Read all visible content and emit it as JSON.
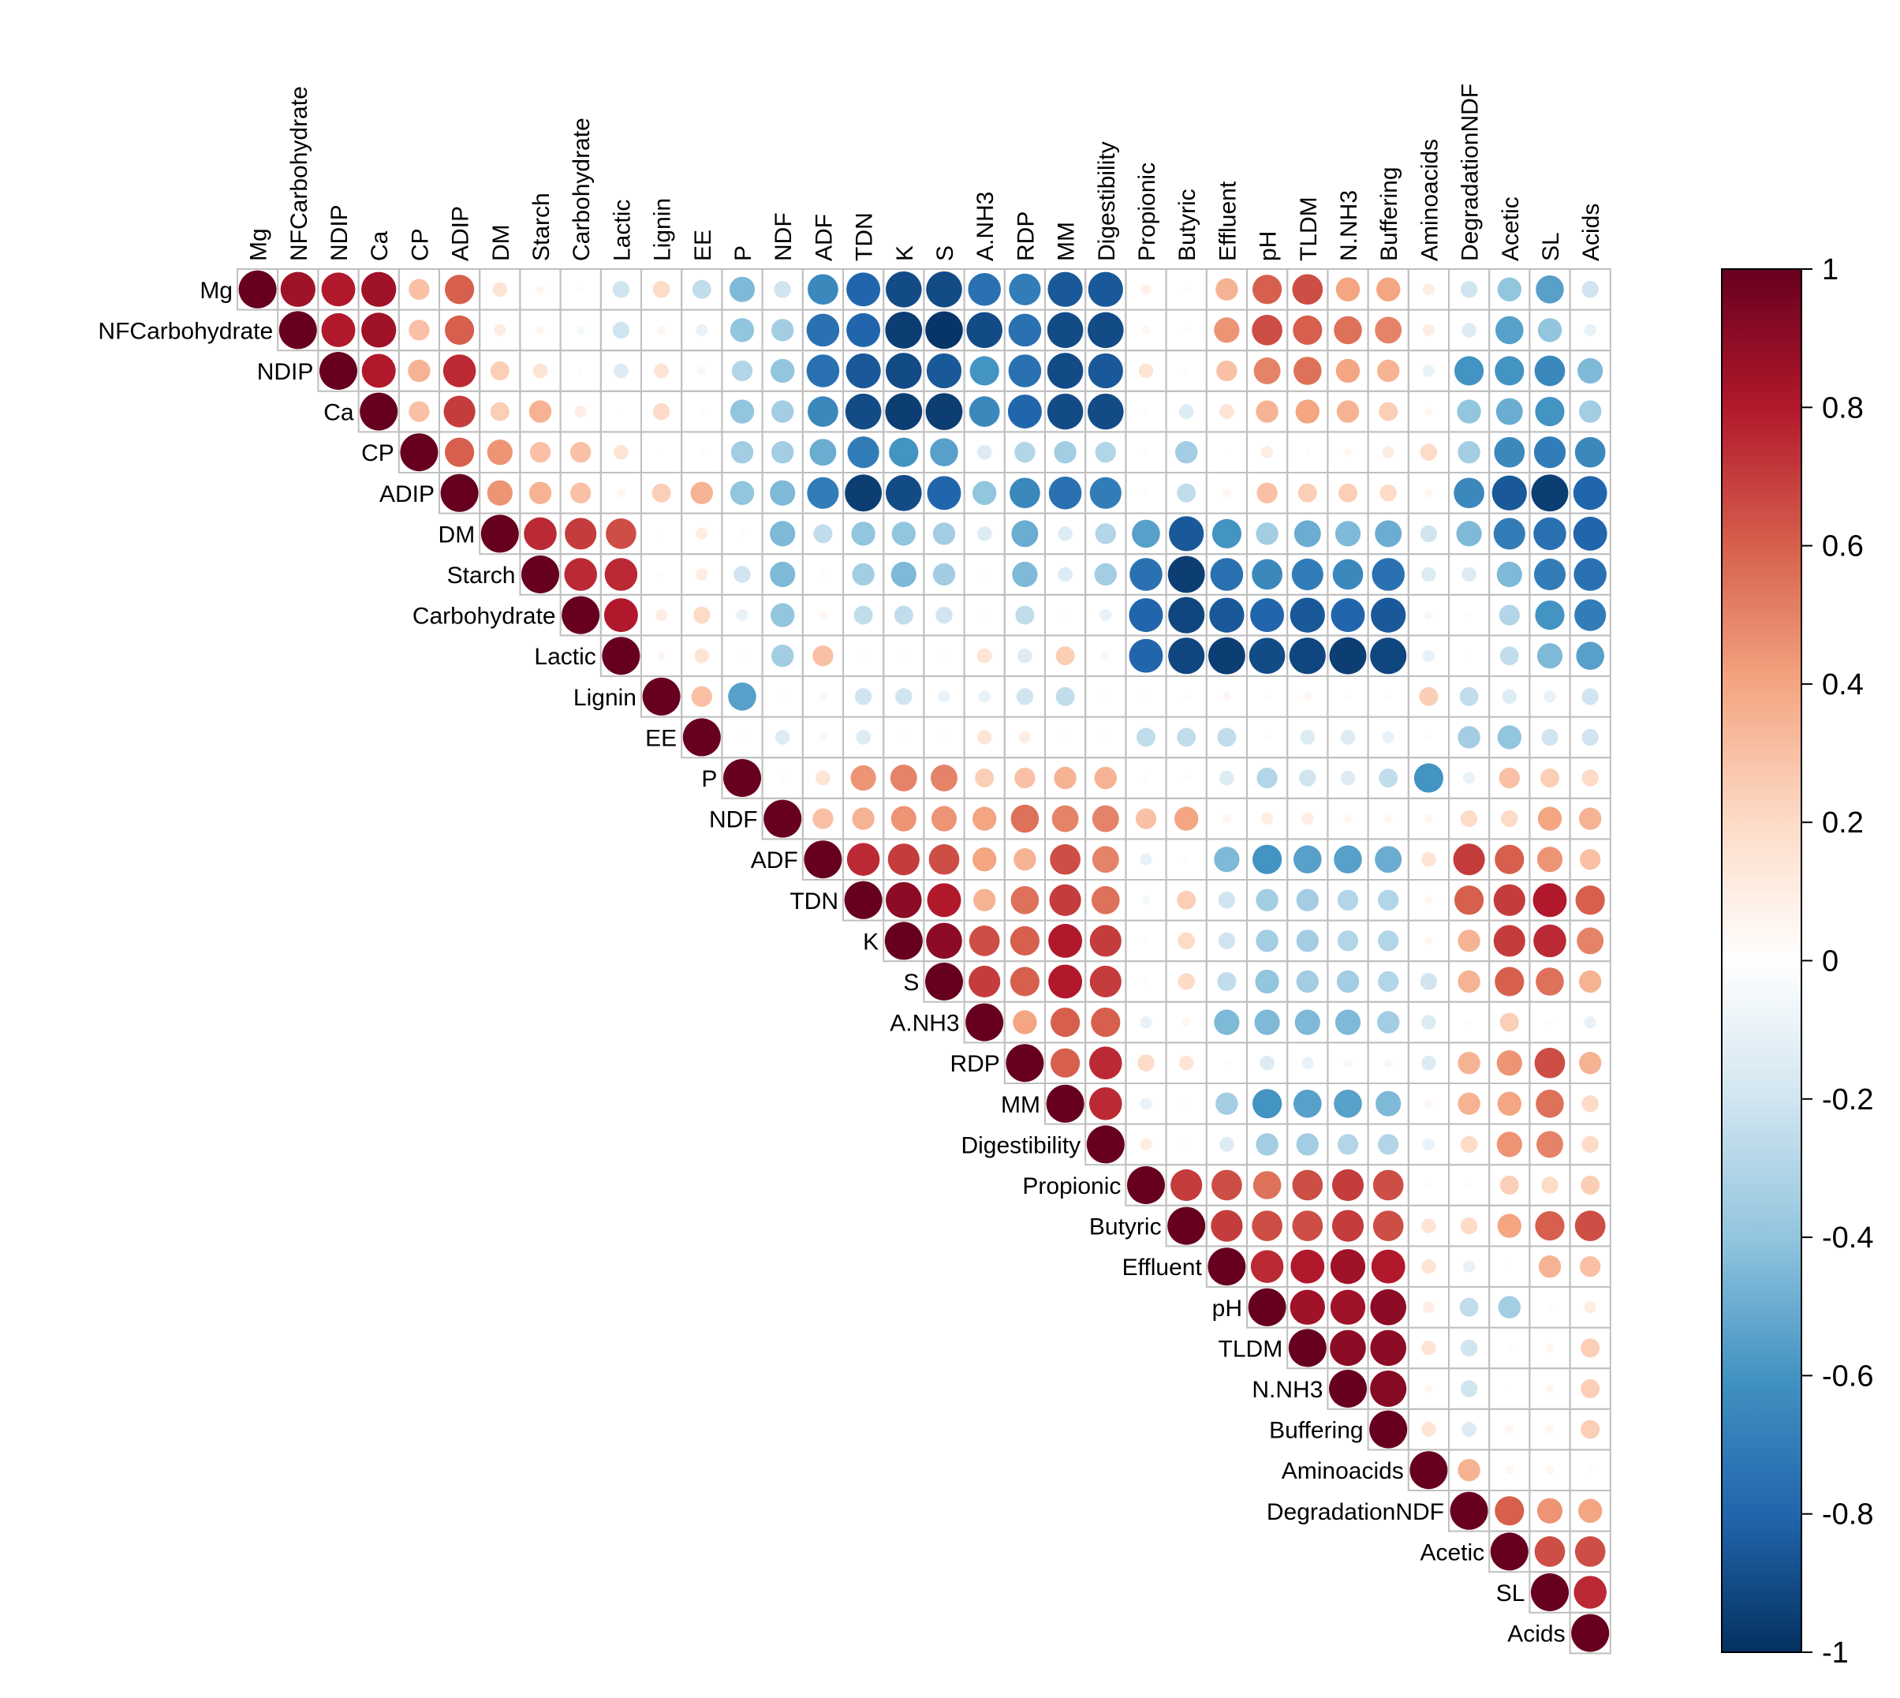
{
  "chart_data": {
    "type": "heatmap",
    "subtype": "correlation-matrix-upper-circles",
    "variables": [
      "Mg",
      "NFCarbohydrate",
      "NDIP",
      "Ca",
      "CP",
      "ADIP",
      "DM",
      "Starch",
      "Carbohydrate",
      "Lactic",
      "Lignin",
      "EE",
      "P",
      "NDF",
      "ADF",
      "TDN",
      "K",
      "S",
      "A.NH3",
      "RDP",
      "MM",
      "Digestibility",
      "Propionic",
      "Butyric",
      "Effluent",
      "pH",
      "TLDM",
      "N.NH3",
      "Buffering",
      "Aminoacids",
      "DegradationNDF",
      "Acetic",
      "SL",
      "Acids"
    ],
    "matrix": [
      [
        1,
        0.85,
        0.8,
        0.85,
        0.3,
        0.6,
        0.15,
        0.05,
        0.02,
        -0.2,
        0.2,
        -0.25,
        -0.45,
        -0.2,
        -0.65,
        -0.8,
        -0.9,
        -0.9,
        -0.75,
        -0.7,
        -0.85,
        -0.85,
        0.08,
        0.02,
        0.35,
        0.6,
        0.65,
        0.4,
        0.4,
        0.1,
        -0.2,
        -0.4,
        -0.55,
        -0.2
      ],
      [
        0,
        1,
        0.8,
        0.85,
        0.3,
        0.6,
        0.1,
        0.05,
        -0.05,
        -0.2,
        0.05,
        -0.1,
        -0.4,
        -0.35,
        -0.75,
        -0.8,
        -0.95,
        -0.98,
        -0.9,
        -0.75,
        -0.9,
        -0.9,
        0.05,
        0.02,
        0.45,
        0.65,
        0.6,
        0.55,
        0.5,
        0.1,
        -0.15,
        -0.55,
        -0.4,
        -0.1
      ],
      [
        0,
        0,
        1,
        0.8,
        0.35,
        0.75,
        0.25,
        0.15,
        0.02,
        -0.15,
        0.15,
        -0.05,
        -0.3,
        -0.4,
        -0.75,
        -0.85,
        -0.9,
        -0.85,
        -0.6,
        -0.75,
        -0.9,
        -0.85,
        0.15,
        0.02,
        0.3,
        0.5,
        0.55,
        0.4,
        0.35,
        -0.1,
        -0.6,
        -0.6,
        -0.65,
        -0.45
      ],
      [
        0,
        0,
        0,
        1,
        0.3,
        0.7,
        0.25,
        0.35,
        0.1,
        0.02,
        0.2,
        0.02,
        -0.4,
        -0.35,
        -0.65,
        -0.9,
        -0.95,
        -0.95,
        -0.65,
        -0.8,
        -0.9,
        -0.9,
        0.02,
        -0.15,
        0.15,
        0.35,
        0.4,
        0.35,
        0.25,
        0.05,
        -0.4,
        -0.5,
        -0.6,
        -0.35
      ],
      [
        0,
        0,
        0,
        0,
        1,
        0.6,
        0.45,
        0.3,
        0.3,
        0.15,
        0.02,
        0.02,
        -0.35,
        -0.35,
        -0.5,
        -0.7,
        -0.6,
        -0.55,
        -0.15,
        -0.3,
        -0.35,
        -0.3,
        0.02,
        -0.35,
        0.02,
        0.1,
        0.02,
        0.05,
        0.1,
        0.2,
        -0.35,
        -0.65,
        -0.7,
        -0.65
      ],
      [
        0,
        0,
        0,
        0,
        0,
        1,
        0.45,
        0.35,
        0.3,
        0.05,
        0.25,
        0.35,
        -0.4,
        -0.45,
        -0.7,
        -0.95,
        -0.9,
        -0.8,
        -0.4,
        -0.65,
        -0.75,
        -0.7,
        0.02,
        -0.25,
        0.05,
        0.3,
        0.25,
        0.25,
        0.2,
        0.05,
        -0.65,
        -0.85,
        -0.95,
        -0.8
      ],
      [
        0,
        0,
        0,
        0,
        0,
        0,
        1,
        0.75,
        0.7,
        0.65,
        0.02,
        0.1,
        0.02,
        -0.45,
        -0.25,
        -0.4,
        -0.4,
        -0.35,
        -0.15,
        -0.5,
        -0.15,
        -0.3,
        -0.55,
        -0.85,
        -0.6,
        -0.35,
        -0.5,
        -0.45,
        -0.5,
        -0.2,
        -0.45,
        -0.7,
        -0.75,
        -0.8
      ],
      [
        0,
        0,
        0,
        0,
        0,
        0,
        0,
        1,
        0.75,
        0.75,
        0.02,
        0.1,
        -0.2,
        -0.45,
        0.02,
        -0.35,
        -0.45,
        -0.35,
        0.02,
        -0.45,
        -0.15,
        -0.35,
        -0.75,
        -0.95,
        -0.75,
        -0.65,
        -0.7,
        -0.65,
        -0.75,
        -0.15,
        -0.15,
        -0.45,
        -0.7,
        -0.75
      ],
      [
        0,
        0,
        0,
        0,
        0,
        0,
        0,
        0,
        1,
        0.8,
        0.1,
        0.2,
        -0.1,
        -0.4,
        0.05,
        -0.25,
        -0.25,
        -0.2,
        0.02,
        -0.25,
        0.02,
        -0.1,
        -0.8,
        -0.92,
        -0.85,
        -0.8,
        -0.85,
        -0.8,
        -0.85,
        -0.05,
        0.02,
        -0.3,
        -0.6,
        -0.7
      ],
      [
        0,
        0,
        0,
        0,
        0,
        0,
        0,
        0,
        0,
        1,
        0.05,
        0.15,
        0.02,
        -0.35,
        0.3,
        0.02,
        0.02,
        0.02,
        0.15,
        -0.15,
        0.25,
        0.05,
        -0.8,
        -0.92,
        -0.95,
        -0.9,
        -0.92,
        -0.95,
        -0.92,
        -0.1,
        0.02,
        -0.25,
        -0.45,
        -0.55
      ],
      [
        0,
        0,
        0,
        0,
        0,
        0,
        0,
        0,
        0,
        0,
        1,
        0.3,
        -0.55,
        0.02,
        -0.05,
        -0.2,
        -0.2,
        -0.1,
        -0.1,
        -0.2,
        -0.25,
        0.02,
        0.02,
        0.02,
        0.05,
        0.02,
        0.05,
        0.02,
        0.02,
        0.25,
        -0.25,
        -0.15,
        -0.1,
        -0.2
      ],
      [
        0,
        0,
        0,
        0,
        0,
        0,
        0,
        0,
        0,
        0,
        0,
        1,
        0.02,
        -0.15,
        -0.05,
        -0.15,
        0.02,
        0.02,
        0.15,
        0.1,
        0.02,
        0.02,
        -0.25,
        -0.25,
        -0.25,
        0.02,
        -0.15,
        -0.15,
        -0.1,
        0.02,
        -0.35,
        -0.4,
        -0.2,
        -0.2
      ],
      [
        0,
        0,
        0,
        0,
        0,
        0,
        0,
        0,
        0,
        0,
        0,
        0,
        1,
        0.02,
        0.15,
        0.45,
        0.5,
        0.5,
        0.25,
        0.3,
        0.35,
        0.35,
        0.02,
        0.02,
        -0.15,
        -0.3,
        -0.2,
        -0.15,
        -0.25,
        -0.6,
        -0.1,
        0.3,
        0.25,
        0.2
      ],
      [
        0,
        0,
        0,
        0,
        0,
        0,
        0,
        0,
        0,
        0,
        0,
        0,
        0,
        1,
        0.3,
        0.35,
        0.45,
        0.45,
        0.4,
        0.55,
        0.5,
        0.5,
        0.3,
        0.4,
        0.05,
        0.1,
        0.1,
        0.05,
        0.05,
        0.05,
        0.2,
        0.2,
        0.4,
        0.35
      ],
      [
        0,
        0,
        0,
        0,
        0,
        0,
        0,
        0,
        0,
        0,
        0,
        0,
        0,
        0,
        1,
        0.75,
        0.7,
        0.65,
        0.4,
        0.35,
        0.65,
        0.5,
        -0.1,
        0.02,
        -0.45,
        -0.6,
        -0.55,
        -0.55,
        -0.5,
        0.15,
        0.7,
        0.6,
        0.45,
        0.3
      ],
      [
        0,
        0,
        0,
        0,
        0,
        0,
        0,
        0,
        0,
        0,
        0,
        0,
        0,
        0,
        0,
        1,
        0.9,
        0.8,
        0.35,
        0.55,
        0.7,
        0.55,
        -0.05,
        0.25,
        -0.2,
        -0.35,
        -0.35,
        -0.3,
        -0.3,
        0.05,
        0.6,
        0.7,
        0.8,
        0.6
      ],
      [
        0,
        0,
        0,
        0,
        0,
        0,
        0,
        0,
        0,
        0,
        0,
        0,
        0,
        0,
        0,
        0,
        1,
        0.9,
        0.65,
        0.6,
        0.8,
        0.7,
        0.02,
        0.2,
        -0.2,
        -0.35,
        -0.35,
        -0.3,
        -0.3,
        0.05,
        0.35,
        0.7,
        0.75,
        0.5
      ],
      [
        0,
        0,
        0,
        0,
        0,
        0,
        0,
        0,
        0,
        0,
        0,
        0,
        0,
        0,
        0,
        0,
        0,
        1,
        0.7,
        0.6,
        0.8,
        0.7,
        0.02,
        0.2,
        -0.25,
        -0.4,
        -0.35,
        -0.35,
        -0.3,
        -0.2,
        0.35,
        0.6,
        0.55,
        0.35
      ],
      [
        0,
        0,
        0,
        0,
        0,
        0,
        0,
        0,
        0,
        0,
        0,
        0,
        0,
        0,
        0,
        0,
        0,
        0,
        1,
        0.4,
        0.6,
        0.6,
        -0.1,
        0.05,
        -0.45,
        -0.45,
        -0.45,
        -0.45,
        -0.35,
        -0.15,
        0.02,
        0.25,
        0.02,
        -0.1
      ],
      [
        0,
        0,
        0,
        0,
        0,
        0,
        0,
        0,
        0,
        0,
        0,
        0,
        0,
        0,
        0,
        0,
        0,
        0,
        0,
        1,
        0.6,
        0.75,
        0.2,
        0.15,
        0.02,
        -0.15,
        -0.1,
        -0.05,
        -0.05,
        -0.15,
        0.35,
        0.45,
        0.65,
        0.35
      ],
      [
        0,
        0,
        0,
        0,
        0,
        0,
        0,
        0,
        0,
        0,
        0,
        0,
        0,
        0,
        0,
        0,
        0,
        0,
        0,
        0,
        1,
        0.75,
        -0.1,
        0.02,
        -0.35,
        -0.6,
        -0.55,
        -0.55,
        -0.45,
        0.05,
        0.35,
        0.4,
        0.55,
        0.2
      ],
      [
        0,
        0,
        0,
        0,
        0,
        0,
        0,
        0,
        0,
        0,
        0,
        0,
        0,
        0,
        0,
        0,
        0,
        0,
        0,
        0,
        0,
        1,
        0.1,
        0.02,
        -0.15,
        -0.35,
        -0.35,
        -0.3,
        -0.3,
        -0.1,
        0.2,
        0.45,
        0.5,
        0.2
      ],
      [
        0,
        0,
        0,
        0,
        0,
        0,
        0,
        0,
        0,
        0,
        0,
        0,
        0,
        0,
        0,
        0,
        0,
        0,
        0,
        0,
        0,
        0,
        1,
        0.7,
        0.65,
        0.55,
        0.65,
        0.7,
        0.65,
        0.02,
        0.02,
        0.25,
        0.2,
        0.25
      ],
      [
        0,
        0,
        0,
        0,
        0,
        0,
        0,
        0,
        0,
        0,
        0,
        0,
        0,
        0,
        0,
        0,
        0,
        0,
        0,
        0,
        0,
        0,
        0,
        1,
        0.7,
        0.65,
        0.65,
        0.7,
        0.65,
        0.15,
        0.2,
        0.4,
        0.6,
        0.65
      ],
      [
        0,
        0,
        0,
        0,
        0,
        0,
        0,
        0,
        0,
        0,
        0,
        0,
        0,
        0,
        0,
        0,
        0,
        0,
        0,
        0,
        0,
        0,
        0,
        0,
        1,
        0.75,
        0.8,
        0.85,
        0.8,
        0.15,
        -0.1,
        0.02,
        0.35,
        0.3
      ],
      [
        0,
        0,
        0,
        0,
        0,
        0,
        0,
        0,
        0,
        0,
        0,
        0,
        0,
        0,
        0,
        0,
        0,
        0,
        0,
        0,
        0,
        0,
        0,
        0,
        0,
        1,
        0.85,
        0.85,
        0.9,
        0.1,
        -0.25,
        -0.35,
        0.02,
        0.1
      ],
      [
        0,
        0,
        0,
        0,
        0,
        0,
        0,
        0,
        0,
        0,
        0,
        0,
        0,
        0,
        0,
        0,
        0,
        0,
        0,
        0,
        0,
        0,
        0,
        0,
        0,
        0,
        1,
        0.9,
        0.9,
        0.15,
        -0.2,
        0.02,
        0.05,
        0.25
      ],
      [
        0,
        0,
        0,
        0,
        0,
        0,
        0,
        0,
        0,
        0,
        0,
        0,
        0,
        0,
        0,
        0,
        0,
        0,
        0,
        0,
        0,
        0,
        0,
        0,
        0,
        0,
        0,
        1,
        0.92,
        0.05,
        -0.2,
        0.02,
        0.05,
        0.25
      ],
      [
        0,
        0,
        0,
        0,
        0,
        0,
        0,
        0,
        0,
        0,
        0,
        0,
        0,
        0,
        0,
        0,
        0,
        0,
        0,
        0,
        0,
        0,
        0,
        0,
        0,
        0,
        0,
        0,
        1,
        0.15,
        -0.15,
        0.05,
        0.05,
        0.25
      ],
      [
        0,
        0,
        0,
        0,
        0,
        0,
        0,
        0,
        0,
        0,
        0,
        0,
        0,
        0,
        0,
        0,
        0,
        0,
        0,
        0,
        0,
        0,
        0,
        0,
        0,
        0,
        0,
        0,
        0,
        1,
        0.35,
        0.05,
        0.05,
        0.02
      ],
      [
        0,
        0,
        0,
        0,
        0,
        0,
        0,
        0,
        0,
        0,
        0,
        0,
        0,
        0,
        0,
        0,
        0,
        0,
        0,
        0,
        0,
        0,
        0,
        0,
        0,
        0,
        0,
        0,
        0,
        0,
        1,
        0.6,
        0.45,
        0.4
      ],
      [
        0,
        0,
        0,
        0,
        0,
        0,
        0,
        0,
        0,
        0,
        0,
        0,
        0,
        0,
        0,
        0,
        0,
        0,
        0,
        0,
        0,
        0,
        0,
        0,
        0,
        0,
        0,
        0,
        0,
        0,
        0,
        1,
        0.65,
        0.65
      ],
      [
        0,
        0,
        0,
        0,
        0,
        0,
        0,
        0,
        0,
        0,
        0,
        0,
        0,
        0,
        0,
        0,
        0,
        0,
        0,
        0,
        0,
        0,
        0,
        0,
        0,
        0,
        0,
        0,
        0,
        0,
        0,
        0,
        1,
        0.75
      ],
      [
        0,
        0,
        0,
        0,
        0,
        0,
        0,
        0,
        0,
        0,
        0,
        0,
        0,
        0,
        0,
        0,
        0,
        0,
        0,
        0,
        0,
        0,
        0,
        0,
        0,
        0,
        0,
        0,
        0,
        0,
        0,
        0,
        0,
        1
      ]
    ],
    "colorbar": {
      "range": [
        -1,
        1
      ],
      "tick_labels": [
        "1",
        "0.8",
        "0.6",
        "0.4",
        "0.2",
        "0",
        "-0.2",
        "-0.4",
        "-0.6",
        "-0.8",
        "-1"
      ],
      "tick_values": [
        1,
        0.8,
        0.6,
        0.4,
        0.2,
        0,
        -0.2,
        -0.4,
        -0.6,
        -0.8,
        -1
      ],
      "color_stops": [
        "#67001f",
        "#b2182b",
        "#d6604d",
        "#f4a582",
        "#fddbc7",
        "#ffffff",
        "#d1e5f0",
        "#92c5de",
        "#4393c3",
        "#2166ac",
        "#053061"
      ]
    },
    "grid_color": "#bfbfbf"
  }
}
